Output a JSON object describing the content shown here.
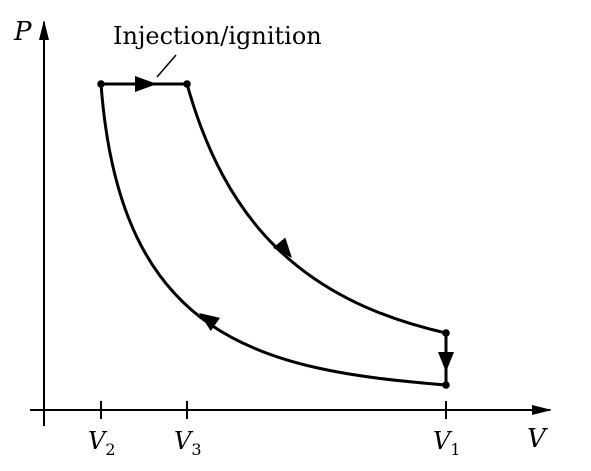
{
  "axes": {
    "y_label": "P",
    "x_label": "V"
  },
  "ticks": [
    {
      "main": "V",
      "sub": "2"
    },
    {
      "main": "V",
      "sub": "3"
    },
    {
      "main": "V",
      "sub": "1"
    }
  ],
  "annotation": {
    "text": "Injection/ignition"
  },
  "colors": {
    "stroke": "#000000",
    "background": "#ffffff"
  }
}
